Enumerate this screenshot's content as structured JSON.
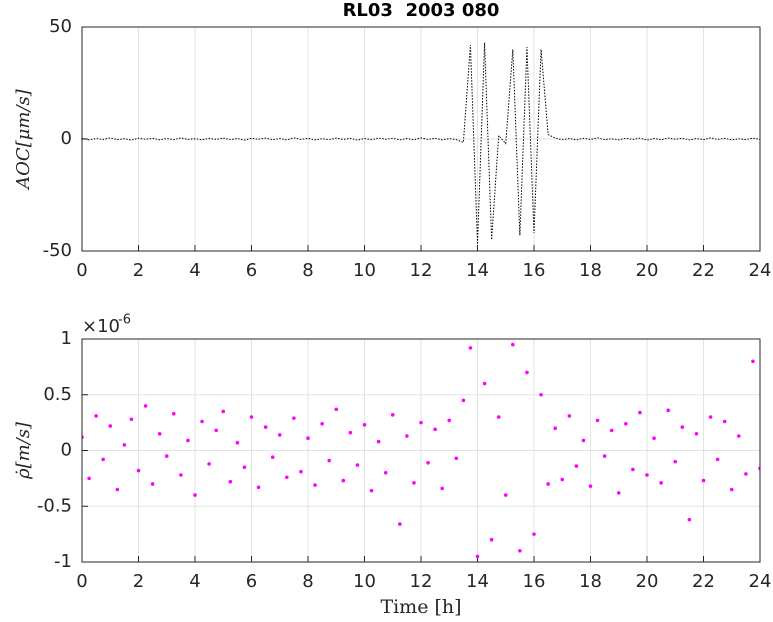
{
  "chart_data": [
    {
      "type": "line",
      "title": "RL03  2003 080",
      "ylabel": "AOC[μm/s]",
      "grid": true,
      "xlim": [
        0,
        24
      ],
      "xticks": [
        0,
        2,
        4,
        6,
        8,
        10,
        12,
        14,
        16,
        18,
        20,
        22,
        24
      ],
      "ylim": [
        -50,
        50
      ],
      "yticks": [
        -50,
        0,
        50
      ],
      "x": [
        0,
        0.25,
        0.5,
        0.75,
        1,
        1.25,
        1.5,
        1.75,
        2,
        2.25,
        2.5,
        2.75,
        3,
        3.25,
        3.5,
        3.75,
        4,
        4.25,
        4.5,
        4.75,
        5,
        5.25,
        5.5,
        5.75,
        6,
        6.25,
        6.5,
        6.75,
        7,
        7.25,
        7.5,
        7.75,
        8,
        8.25,
        8.5,
        8.75,
        9,
        9.25,
        9.5,
        9.75,
        10,
        10.25,
        10.5,
        10.75,
        11,
        11.25,
        11.5,
        11.75,
        12,
        12.25,
        12.5,
        12.75,
        13,
        13.25,
        13.5,
        13.75,
        14,
        14.25,
        14.5,
        14.75,
        15,
        15.25,
        15.5,
        15.75,
        16,
        16.25,
        16.5,
        16.75,
        17,
        17.25,
        17.5,
        17.75,
        18,
        18.25,
        18.5,
        18.75,
        19,
        19.25,
        19.5,
        19.75,
        20,
        20.25,
        20.5,
        20.75,
        21,
        21.25,
        21.5,
        21.75,
        22,
        22.25,
        22.5,
        22.75,
        23,
        23.25,
        23.5,
        23.75,
        24
      ],
      "series": [
        {
          "color": "#000000",
          "values": [
            0.3,
            -0.4,
            0.2,
            -0.2,
            0.5,
            -0.3,
            0.1,
            -0.5,
            0.4,
            -0.1,
            0.3,
            -0.4,
            0.2,
            -0.3,
            0.5,
            -0.2,
            0.1,
            -0.4,
            0.3,
            -0.2,
            0.4,
            -0.3,
            0.2,
            -0.5,
            0.3,
            -0.1,
            0.4,
            -0.3,
            0.2,
            -0.4,
            0.5,
            -0.2,
            0.3,
            -0.4,
            0.1,
            -0.3,
            0.4,
            -0.2,
            0.3,
            -0.5,
            0.2,
            -0.3,
            0.4,
            -0.1,
            0.3,
            -0.4,
            0.2,
            -0.3,
            0.5,
            -0.2,
            0.3,
            -0.4,
            0.2,
            -0.3,
            -1.5,
            42,
            -47,
            43,
            -45,
            1.5,
            -2,
            40,
            -43,
            41,
            -42,
            40,
            2,
            0.4,
            -0.3,
            0.2,
            -0.4,
            0.3,
            -0.2,
            0.5,
            -0.3,
            0.1,
            -0.4,
            0.3,
            -0.2,
            0.4,
            -0.5,
            0.2,
            -0.3,
            0.4,
            -0.1,
            0.3,
            -0.4,
            0.2,
            -0.3,
            0.5,
            -0.2,
            0.3,
            -0.4,
            0.1,
            -0.3,
            0.4,
            -0.2
          ]
        }
      ]
    },
    {
      "type": "scatter",
      "ylabel": "ρ̇[m/s]",
      "xlabel": "Time [h]",
      "exponent_base": "×10",
      "exponent_power": "-6",
      "grid": true,
      "xlim": [
        0,
        24
      ],
      "xticks": [
        0,
        2,
        4,
        6,
        8,
        10,
        12,
        14,
        16,
        18,
        20,
        22,
        24
      ],
      "ylim": [
        -1,
        1
      ],
      "yticks": [
        -1,
        -0.5,
        0,
        0.5,
        1
      ],
      "x": [
        0,
        0.25,
        0.5,
        0.75,
        1,
        1.25,
        1.5,
        1.75,
        2,
        2.25,
        2.5,
        2.75,
        3,
        3.25,
        3.5,
        3.75,
        4,
        4.25,
        4.5,
        4.75,
        5,
        5.25,
        5.5,
        5.75,
        6,
        6.25,
        6.5,
        6.75,
        7,
        7.25,
        7.5,
        7.75,
        8,
        8.25,
        8.5,
        8.75,
        9,
        9.25,
        9.5,
        9.75,
        10,
        10.25,
        10.5,
        10.75,
        11,
        11.25,
        11.5,
        11.75,
        12,
        12.25,
        12.5,
        12.75,
        13,
        13.25,
        13.5,
        13.75,
        14,
        14.25,
        14.5,
        14.75,
        15,
        15.25,
        15.5,
        15.75,
        16,
        16.25,
        16.5,
        16.75,
        17,
        17.25,
        17.5,
        17.75,
        18,
        18.25,
        18.5,
        18.75,
        19,
        19.25,
        19.5,
        19.75,
        20,
        20.25,
        20.5,
        20.75,
        21,
        21.25,
        21.5,
        21.75,
        22,
        22.25,
        22.5,
        22.75,
        23,
        23.25,
        23.5,
        23.75,
        24
      ],
      "series": [
        {
          "color": "#ff00ff",
          "values": [
            0.12,
            -0.25,
            0.31,
            -0.08,
            0.22,
            -0.35,
            0.05,
            0.28,
            -0.18,
            0.4,
            -0.3,
            0.15,
            -0.05,
            0.33,
            -0.22,
            0.09,
            -0.4,
            0.26,
            -0.12,
            0.18,
            0.35,
            -0.28,
            0.07,
            -0.15,
            0.3,
            -0.33,
            0.21,
            -0.06,
            0.14,
            -0.24,
            0.29,
            -0.19,
            0.11,
            -0.31,
            0.24,
            -0.09,
            0.37,
            -0.27,
            0.16,
            -0.13,
            0.23,
            -0.36,
            0.08,
            -0.2,
            0.32,
            -0.66,
            0.13,
            -0.29,
            0.25,
            -0.11,
            0.19,
            -0.34,
            0.27,
            -0.07,
            0.45,
            0.92,
            -0.95,
            0.6,
            -0.8,
            0.3,
            -0.4,
            0.95,
            -0.9,
            0.7,
            -0.75,
            0.5,
            -0.3,
            0.2,
            -0.26,
            0.31,
            -0.14,
            0.09,
            -0.32,
            0.27,
            -0.05,
            0.18,
            -0.38,
            0.24,
            -0.17,
            0.34,
            -0.22,
            0.11,
            -0.29,
            0.36,
            -0.1,
            0.21,
            -0.62,
            0.15,
            -0.27,
            0.3,
            -0.08,
            0.26,
            -0.35,
            0.13,
            -0.21,
            0.8,
            -0.16
          ]
        }
      ]
    }
  ]
}
